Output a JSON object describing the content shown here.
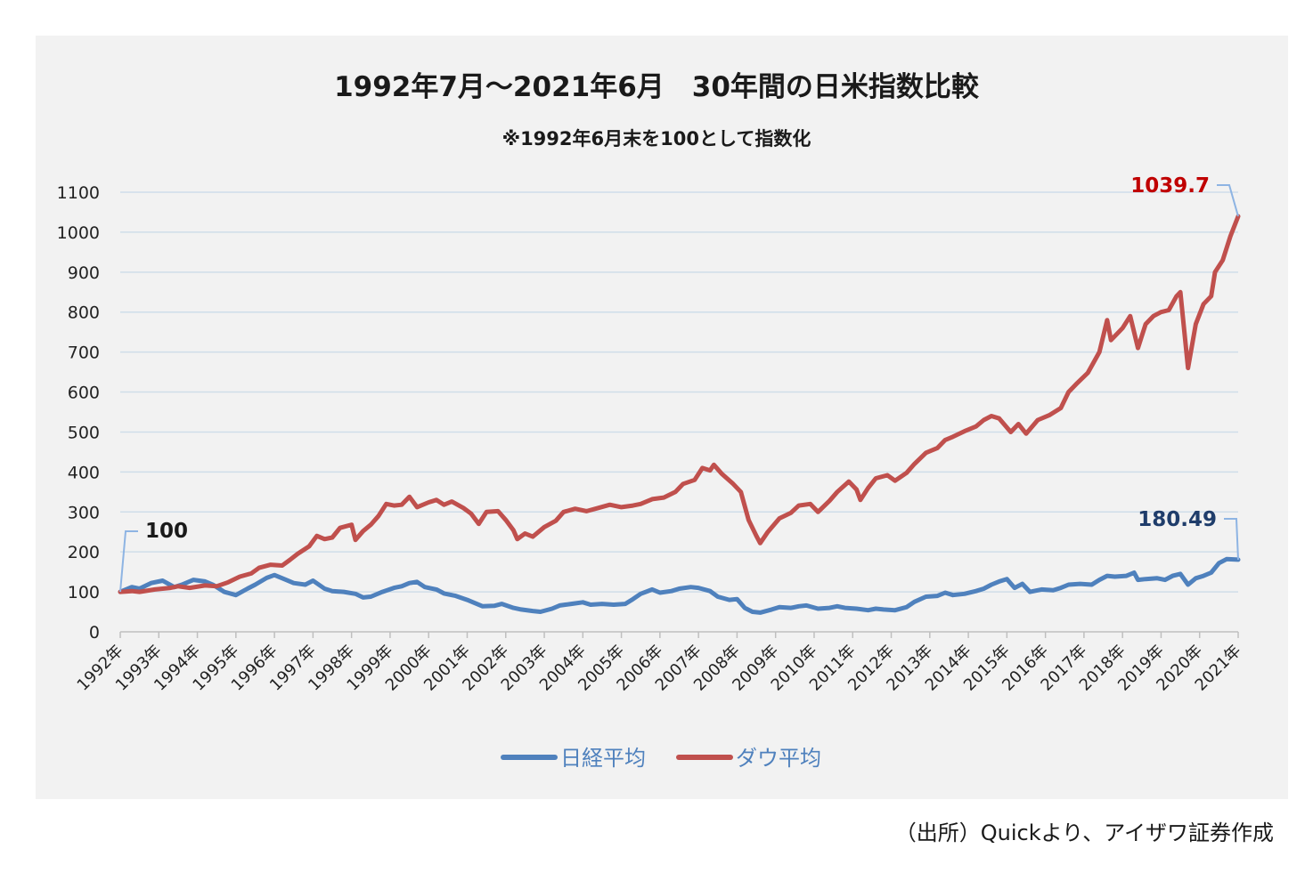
{
  "chart_data": {
    "type": "line",
    "title": "1992年7月～2021年6月　30年間の日米指数比較",
    "subtitle": "※1992年6月末を100として指数化",
    "xlabel": "",
    "ylabel": "",
    "ylim": [
      0,
      1100
    ],
    "yticks": [
      "0",
      "100",
      "200",
      "300",
      "400",
      "500",
      "600",
      "700",
      "800",
      "900",
      "1000",
      "1100"
    ],
    "x_tick_labels": [
      "1992年",
      "1993年",
      "1994年",
      "1995年",
      "1996年",
      "1997年",
      "1998年",
      "1999年",
      "2000年",
      "2001年",
      "2002年",
      "2003年",
      "2004年",
      "2005年",
      "2006年",
      "2007年",
      "2008年",
      "2009年",
      "2010年",
      "2011年",
      "2012年",
      "2013年",
      "2014年",
      "2015年",
      "2016年",
      "2017年",
      "2018年",
      "2019年",
      "2020年",
      "2021年"
    ],
    "grid": true,
    "legend": "bottom",
    "series": [
      {
        "name": "日経平均",
        "color": "#4f81bd",
        "points": [
          [
            1992.5,
            100
          ],
          [
            1992.8,
            112
          ],
          [
            1993.0,
            108
          ],
          [
            1993.3,
            122
          ],
          [
            1993.6,
            128
          ],
          [
            1993.9,
            112
          ],
          [
            1994.1,
            118
          ],
          [
            1994.4,
            130
          ],
          [
            1994.7,
            126
          ],
          [
            1994.9,
            118
          ],
          [
            1995.2,
            100
          ],
          [
            1995.5,
            92
          ],
          [
            1995.8,
            108
          ],
          [
            1996.0,
            118
          ],
          [
            1996.3,
            135
          ],
          [
            1996.5,
            142
          ],
          [
            1996.8,
            130
          ],
          [
            1997.0,
            122
          ],
          [
            1997.3,
            118
          ],
          [
            1997.5,
            128
          ],
          [
            1997.8,
            108
          ],
          [
            1998.0,
            102
          ],
          [
            1998.3,
            100
          ],
          [
            1998.6,
            95
          ],
          [
            1998.8,
            86
          ],
          [
            1999.0,
            88
          ],
          [
            1999.3,
            100
          ],
          [
            1999.6,
            110
          ],
          [
            1999.8,
            114
          ],
          [
            2000.0,
            122
          ],
          [
            2000.2,
            125
          ],
          [
            2000.4,
            112
          ],
          [
            2000.7,
            106
          ],
          [
            2000.9,
            96
          ],
          [
            2001.2,
            90
          ],
          [
            2001.5,
            80
          ],
          [
            2001.7,
            72
          ],
          [
            2001.9,
            64
          ],
          [
            2002.2,
            65
          ],
          [
            2002.4,
            70
          ],
          [
            2002.7,
            60
          ],
          [
            2002.9,
            56
          ],
          [
            2003.2,
            52
          ],
          [
            2003.4,
            50
          ],
          [
            2003.7,
            58
          ],
          [
            2003.9,
            66
          ],
          [
            2004.2,
            70
          ],
          [
            2004.5,
            74
          ],
          [
            2004.7,
            68
          ],
          [
            2005.0,
            70
          ],
          [
            2005.3,
            68
          ],
          [
            2005.6,
            70
          ],
          [
            2005.8,
            82
          ],
          [
            2006.0,
            95
          ],
          [
            2006.3,
            106
          ],
          [
            2006.5,
            98
          ],
          [
            2006.8,
            102
          ],
          [
            2007.0,
            108
          ],
          [
            2007.3,
            112
          ],
          [
            2007.5,
            110
          ],
          [
            2007.8,
            102
          ],
          [
            2008.0,
            88
          ],
          [
            2008.3,
            80
          ],
          [
            2008.5,
            82
          ],
          [
            2008.7,
            60
          ],
          [
            2008.9,
            50
          ],
          [
            2009.1,
            48
          ],
          [
            2009.4,
            56
          ],
          [
            2009.6,
            62
          ],
          [
            2009.9,
            60
          ],
          [
            2010.1,
            64
          ],
          [
            2010.3,
            66
          ],
          [
            2010.6,
            58
          ],
          [
            2010.9,
            60
          ],
          [
            2011.1,
            64
          ],
          [
            2011.3,
            60
          ],
          [
            2011.6,
            58
          ],
          [
            2011.9,
            54
          ],
          [
            2012.1,
            58
          ],
          [
            2012.3,
            56
          ],
          [
            2012.6,
            54
          ],
          [
            2012.9,
            62
          ],
          [
            2013.1,
            75
          ],
          [
            2013.4,
            88
          ],
          [
            2013.7,
            90
          ],
          [
            2013.9,
            98
          ],
          [
            2014.1,
            92
          ],
          [
            2014.4,
            95
          ],
          [
            2014.7,
            102
          ],
          [
            2014.9,
            108
          ],
          [
            2015.1,
            118
          ],
          [
            2015.3,
            126
          ],
          [
            2015.5,
            132
          ],
          [
            2015.7,
            110
          ],
          [
            2015.9,
            120
          ],
          [
            2016.1,
            100
          ],
          [
            2016.4,
            106
          ],
          [
            2016.7,
            104
          ],
          [
            2016.9,
            110
          ],
          [
            2017.1,
            118
          ],
          [
            2017.4,
            120
          ],
          [
            2017.7,
            118
          ],
          [
            2017.9,
            130
          ],
          [
            2018.1,
            140
          ],
          [
            2018.3,
            138
          ],
          [
            2018.6,
            140
          ],
          [
            2018.8,
            148
          ],
          [
            2018.9,
            130
          ],
          [
            2019.1,
            132
          ],
          [
            2019.4,
            134
          ],
          [
            2019.6,
            130
          ],
          [
            2019.8,
            140
          ],
          [
            2020.0,
            145
          ],
          [
            2020.2,
            118
          ],
          [
            2020.4,
            134
          ],
          [
            2020.6,
            140
          ],
          [
            2020.8,
            148
          ],
          [
            2021.0,
            172
          ],
          [
            2021.2,
            182
          ],
          [
            2021.5,
            180.49
          ]
        ]
      },
      {
        "name": "ダウ平均",
        "color": "#c0504d",
        "points": [
          [
            1992.5,
            100
          ],
          [
            1992.8,
            102
          ],
          [
            1993.0,
            100
          ],
          [
            1993.4,
            106
          ],
          [
            1993.8,
            110
          ],
          [
            1994.0,
            114
          ],
          [
            1994.3,
            110
          ],
          [
            1994.7,
            116
          ],
          [
            1995.0,
            114
          ],
          [
            1995.3,
            124
          ],
          [
            1995.6,
            138
          ],
          [
            1995.9,
            146
          ],
          [
            1996.1,
            160
          ],
          [
            1996.4,
            168
          ],
          [
            1996.7,
            166
          ],
          [
            1996.9,
            180
          ],
          [
            1997.1,
            195
          ],
          [
            1997.4,
            214
          ],
          [
            1997.6,
            240
          ],
          [
            1997.8,
            232
          ],
          [
            1998.0,
            236
          ],
          [
            1998.2,
            260
          ],
          [
            1998.5,
            268
          ],
          [
            1998.6,
            230
          ],
          [
            1998.8,
            252
          ],
          [
            1999.0,
            268
          ],
          [
            1999.2,
            290
          ],
          [
            1999.4,
            320
          ],
          [
            1999.6,
            316
          ],
          [
            1999.8,
            318
          ],
          [
            2000.0,
            338
          ],
          [
            2000.2,
            312
          ],
          [
            2000.5,
            324
          ],
          [
            2000.7,
            330
          ],
          [
            2000.9,
            318
          ],
          [
            2001.1,
            326
          ],
          [
            2001.4,
            310
          ],
          [
            2001.6,
            296
          ],
          [
            2001.8,
            270
          ],
          [
            2002.0,
            300
          ],
          [
            2002.3,
            302
          ],
          [
            2002.5,
            280
          ],
          [
            2002.7,
            254
          ],
          [
            2002.8,
            232
          ],
          [
            2003.0,
            246
          ],
          [
            2003.2,
            238
          ],
          [
            2003.5,
            262
          ],
          [
            2003.8,
            278
          ],
          [
            2004.0,
            300
          ],
          [
            2004.3,
            308
          ],
          [
            2004.6,
            302
          ],
          [
            2004.9,
            310
          ],
          [
            2005.2,
            318
          ],
          [
            2005.5,
            312
          ],
          [
            2005.8,
            316
          ],
          [
            2006.0,
            320
          ],
          [
            2006.3,
            332
          ],
          [
            2006.6,
            336
          ],
          [
            2006.9,
            350
          ],
          [
            2007.1,
            370
          ],
          [
            2007.4,
            380
          ],
          [
            2007.6,
            410
          ],
          [
            2007.8,
            404
          ],
          [
            2007.9,
            418
          ],
          [
            2008.1,
            396
          ],
          [
            2008.4,
            370
          ],
          [
            2008.6,
            350
          ],
          [
            2008.8,
            280
          ],
          [
            2009.0,
            240
          ],
          [
            2009.1,
            222
          ],
          [
            2009.3,
            250
          ],
          [
            2009.6,
            284
          ],
          [
            2009.9,
            298
          ],
          [
            2010.1,
            316
          ],
          [
            2010.4,
            320
          ],
          [
            2010.6,
            300
          ],
          [
            2010.9,
            328
          ],
          [
            2011.1,
            350
          ],
          [
            2011.4,
            376
          ],
          [
            2011.6,
            356
          ],
          [
            2011.7,
            330
          ],
          [
            2011.9,
            360
          ],
          [
            2012.1,
            384
          ],
          [
            2012.4,
            392
          ],
          [
            2012.6,
            378
          ],
          [
            2012.9,
            398
          ],
          [
            2013.1,
            420
          ],
          [
            2013.4,
            448
          ],
          [
            2013.7,
            460
          ],
          [
            2013.9,
            480
          ],
          [
            2014.1,
            488
          ],
          [
            2014.4,
            502
          ],
          [
            2014.7,
            514
          ],
          [
            2014.9,
            530
          ],
          [
            2015.1,
            540
          ],
          [
            2015.3,
            534
          ],
          [
            2015.6,
            500
          ],
          [
            2015.8,
            520
          ],
          [
            2016.0,
            496
          ],
          [
            2016.3,
            530
          ],
          [
            2016.6,
            542
          ],
          [
            2016.9,
            560
          ],
          [
            2017.1,
            600
          ],
          [
            2017.3,
            620
          ],
          [
            2017.6,
            648
          ],
          [
            2017.9,
            700
          ],
          [
            2018.1,
            780
          ],
          [
            2018.2,
            730
          ],
          [
            2018.5,
            760
          ],
          [
            2018.7,
            790
          ],
          [
            2018.9,
            710
          ],
          [
            2019.1,
            770
          ],
          [
            2019.3,
            790
          ],
          [
            2019.5,
            800
          ],
          [
            2019.7,
            805
          ],
          [
            2019.9,
            840
          ],
          [
            2020.0,
            850
          ],
          [
            2020.2,
            660
          ],
          [
            2020.4,
            770
          ],
          [
            2020.6,
            820
          ],
          [
            2020.8,
            840
          ],
          [
            2020.9,
            900
          ],
          [
            2021.1,
            930
          ],
          [
            2021.3,
            990
          ],
          [
            2021.5,
            1039.7
          ]
        ]
      }
    ],
    "annotations": [
      {
        "text": "100",
        "x": 1992.5,
        "y": 100,
        "color": "#1a1a1a"
      },
      {
        "text": "1039.7",
        "x": 2021.5,
        "y": 1039.7,
        "color": "#c00000"
      },
      {
        "text": "180.49",
        "x": 2021.5,
        "y": 180.49,
        "color": "#1f3d6b"
      }
    ]
  },
  "source_note": "（出所）Quickより、アイザワ証券作成"
}
